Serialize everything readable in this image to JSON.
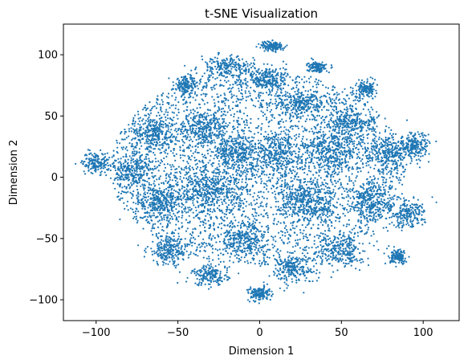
{
  "chart_data": {
    "type": "scatter",
    "title": "t-SNE Visualization",
    "xlabel": "Dimension 1",
    "ylabel": "Dimension 2",
    "xlim": [
      -120,
      122
    ],
    "ylim": [
      -117,
      125
    ],
    "xticks": [
      -100,
      -50,
      0,
      50,
      100
    ],
    "yticks": [
      -100,
      -50,
      0,
      50,
      100
    ],
    "xtick_labels": [
      "−100",
      "−50",
      "0",
      "50",
      "100"
    ],
    "ytick_labels": [
      "−100",
      "−50",
      "0",
      "50",
      "100"
    ],
    "grid": false,
    "legend": "none",
    "marker_color": "#1f77b4",
    "series": [
      {
        "values_description_note": "",
        "x_range": [
          -110,
          108
        ],
        "y_range": [
          -104,
          112
        ],
        "clusters": [
          {
            "center": [
              -100,
              12
            ],
            "spread": [
              6,
              6
            ]
          },
          {
            "center": [
              -78,
              5
            ],
            "spread": [
              8,
              10
            ]
          },
          {
            "center": [
              -65,
              35
            ],
            "spread": [
              10,
              10
            ]
          },
          {
            "center": [
              -60,
              -20
            ],
            "spread": [
              12,
              12
            ]
          },
          {
            "center": [
              -55,
              -60
            ],
            "spread": [
              10,
              8
            ]
          },
          {
            "center": [
              -45,
              75
            ],
            "spread": [
              5,
              5
            ]
          },
          {
            "center": [
              -35,
              40
            ],
            "spread": [
              12,
              10
            ]
          },
          {
            "center": [
              -30,
              -10
            ],
            "spread": [
              14,
              14
            ]
          },
          {
            "center": [
              -30,
              -80
            ],
            "spread": [
              8,
              6
            ]
          },
          {
            "center": [
              -20,
              90
            ],
            "spread": [
              12,
              6
            ]
          },
          {
            "center": [
              -15,
              20
            ],
            "spread": [
              10,
              10
            ]
          },
          {
            "center": [
              -10,
              -50
            ],
            "spread": [
              10,
              10
            ]
          },
          {
            "center": [
              0,
              -95
            ],
            "spread": [
              5,
              4
            ]
          },
          {
            "center": [
              5,
              80
            ],
            "spread": [
              8,
              8
            ]
          },
          {
            "center": [
              8,
              107
            ],
            "spread": [
              5,
              3
            ]
          },
          {
            "center": [
              10,
              20
            ],
            "spread": [
              12,
              12
            ]
          },
          {
            "center": [
              20,
              -75
            ],
            "spread": [
              10,
              8
            ]
          },
          {
            "center": [
              25,
              60
            ],
            "spread": [
              10,
              8
            ]
          },
          {
            "center": [
              30,
              -20
            ],
            "spread": [
              14,
              14
            ]
          },
          {
            "center": [
              35,
              90
            ],
            "spread": [
              4,
              3
            ]
          },
          {
            "center": [
              45,
              20
            ],
            "spread": [
              12,
              12
            ]
          },
          {
            "center": [
              50,
              -60
            ],
            "spread": [
              10,
              10
            ]
          },
          {
            "center": [
              55,
              45
            ],
            "spread": [
              10,
              8
            ]
          },
          {
            "center": [
              65,
              72
            ],
            "spread": [
              5,
              5
            ]
          },
          {
            "center": [
              70,
              -20
            ],
            "spread": [
              10,
              12
            ]
          },
          {
            "center": [
              80,
              20
            ],
            "spread": [
              10,
              10
            ]
          },
          {
            "center": [
              90,
              -30
            ],
            "spread": [
              8,
              8
            ]
          },
          {
            "center": [
              95,
              25
            ],
            "spread": [
              6,
              8
            ]
          },
          {
            "center": [
              85,
              -65
            ],
            "spread": [
              4,
              4
            ]
          }
        ]
      }
    ]
  }
}
